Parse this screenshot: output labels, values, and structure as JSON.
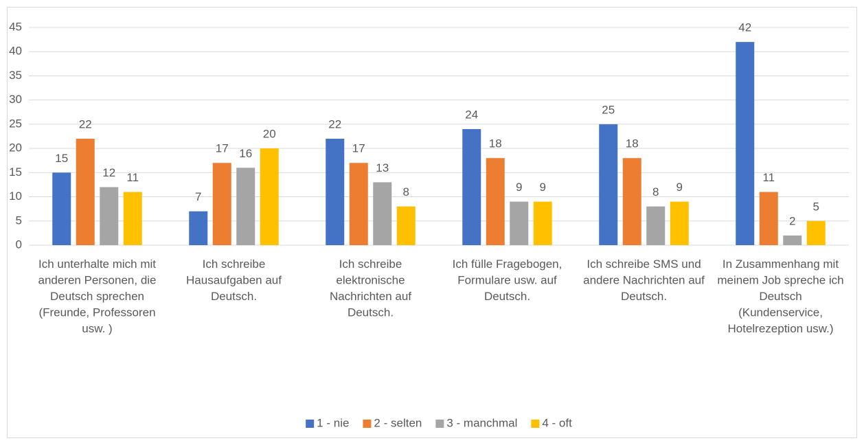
{
  "chart_data": {
    "type": "bar",
    "categories": [
      "Ich unterhalte mich mit anderen Personen, die Deutsch sprechen (Freunde, Professoren usw. )",
      "Ich schreibe Hausaufgaben auf Deutsch.",
      "Ich schreibe elektronische Nachrichten auf Deutsch.",
      "Ich fülle Fragebogen, Formulare usw. auf Deutsch.",
      "Ich schreibe SMS und andere Nachrichten auf Deutsch.",
      "In Zusammenhang mit meinem Job spreche ich Deutsch (Kundenservice, Hotelrezeption usw.)"
    ],
    "series": [
      {
        "name": "1 - nie",
        "color": "#4472c4",
        "values": [
          15,
          7,
          22,
          24,
          25,
          42
        ]
      },
      {
        "name": "2 - selten",
        "color": "#ed7d31",
        "values": [
          22,
          17,
          17,
          18,
          18,
          11
        ]
      },
      {
        "name": "3 - manchmal",
        "color": "#a5a5a5",
        "values": [
          12,
          16,
          13,
          9,
          8,
          2
        ]
      },
      {
        "name": "4 - oft",
        "color": "#ffc000",
        "values": [
          11,
          20,
          8,
          9,
          9,
          5
        ]
      }
    ],
    "ylim": [
      0,
      45
    ],
    "yticks": [
      0,
      5,
      10,
      15,
      20,
      25,
      30,
      35,
      40,
      45
    ],
    "grid": true,
    "legend": "bottom"
  }
}
